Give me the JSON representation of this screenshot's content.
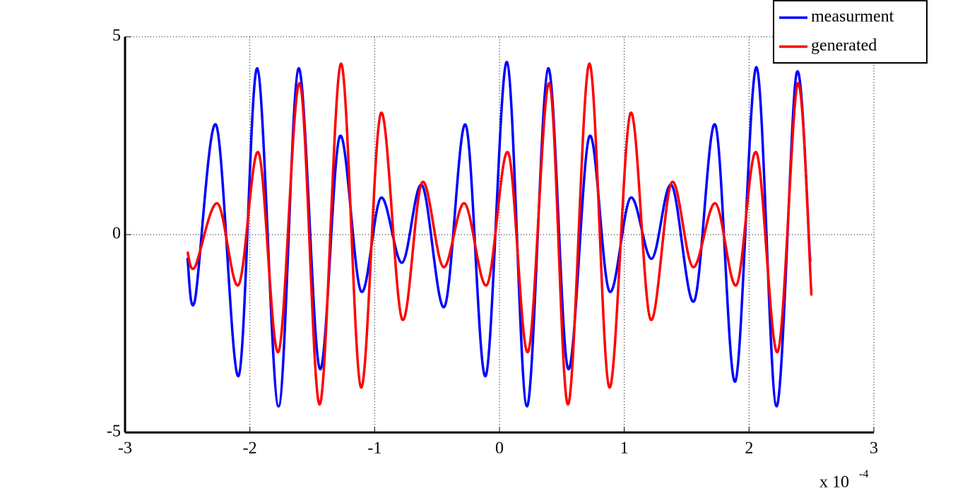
{
  "chart_data": {
    "type": "line",
    "x_multiplier": "x 10",
    "x_exponent": "-4",
    "xlim": [
      -3,
      3
    ],
    "xticks": [
      -3,
      -2,
      -1,
      0,
      1,
      2,
      3
    ],
    "ylim": [
      -5,
      5
    ],
    "yticks": [
      -5,
      0,
      5
    ],
    "grid": true,
    "legend": "upper right",
    "series": [
      {
        "name": "measurment",
        "color": "#0000ff",
        "x": [
          -2.5,
          -2.44,
          -2.27,
          -2.09,
          -1.94,
          -1.77,
          -1.61,
          -1.44,
          -1.28,
          -1.11,
          -0.95,
          -0.78,
          -0.62,
          -0.44,
          -0.27,
          -0.11,
          0.06,
          0.22,
          0.39,
          0.55,
          0.72,
          0.88,
          1.05,
          1.22,
          1.38,
          1.56,
          1.73,
          1.89,
          2.06,
          2.22,
          2.38,
          2.49
        ],
        "values": [
          -0.59,
          -1.66,
          2.77,
          -3.57,
          4.2,
          -4.34,
          4.2,
          -3.39,
          2.48,
          -1.43,
          0.93,
          -0.71,
          1.25,
          -1.82,
          2.77,
          -3.57,
          4.36,
          -4.34,
          4.2,
          -3.39,
          2.48,
          -1.43,
          0.93,
          -0.61,
          1.25,
          -1.68,
          2.77,
          -3.71,
          4.23,
          -4.34,
          4.07,
          -0.68
        ]
      },
      {
        "name": "generated",
        "color": "#ff0000",
        "x": [
          -2.5,
          -2.44,
          -2.26,
          -2.09,
          -1.93,
          -1.77,
          -1.6,
          -1.44,
          -1.27,
          -1.11,
          -0.95,
          -0.78,
          -0.62,
          -0.45,
          -0.28,
          -0.1,
          0.07,
          0.23,
          0.4,
          0.55,
          0.72,
          0.88,
          1.05,
          1.21,
          1.38,
          1.55,
          1.73,
          1.9,
          2.06,
          2.23,
          2.39,
          2.5
        ],
        "values": [
          -0.43,
          -0.82,
          0.79,
          -1.27,
          2.07,
          -2.96,
          3.82,
          -4.29,
          4.32,
          -3.86,
          3.07,
          -2.14,
          1.32,
          -0.82,
          0.79,
          -1.27,
          2.07,
          -2.96,
          3.82,
          -4.29,
          4.32,
          -3.86,
          3.07,
          -2.14,
          1.32,
          -0.82,
          0.79,
          -1.27,
          2.07,
          -2.96,
          3.82,
          -1.54
        ]
      }
    ]
  }
}
